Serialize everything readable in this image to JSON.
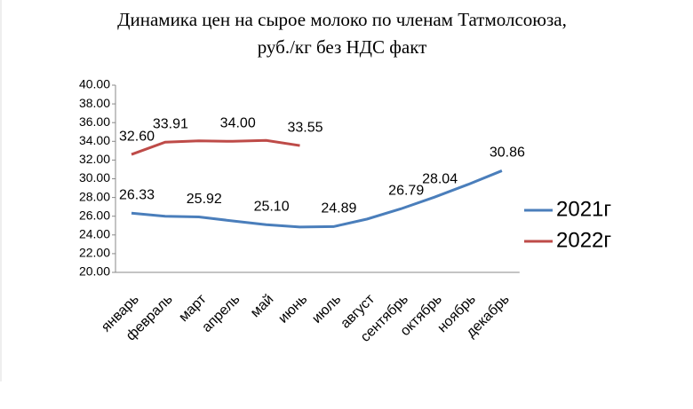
{
  "chart_data": {
    "type": "line",
    "title": [
      "Динамика цен на сырое молоко по членам Татмолсоюза,",
      "руб./кг без НДС факт"
    ],
    "categories": [
      "январь",
      "февраль",
      "март",
      "апрель",
      "май",
      "июнь",
      "июль",
      "август",
      "сентябрь",
      "октябрь",
      "ноябрь",
      "декабрь"
    ],
    "series": [
      {
        "name": "2021г",
        "color": "#4a7ebb",
        "values": [
          26.33,
          26.0,
          25.92,
          25.5,
          25.1,
          24.85,
          24.89,
          25.7,
          26.79,
          28.04,
          29.4,
          30.86
        ],
        "value_labels": [
          "26.33",
          null,
          "25.92",
          null,
          "25.10",
          null,
          "24.89",
          null,
          "26.79",
          "28.04",
          null,
          "30.86"
        ]
      },
      {
        "name": "2022г",
        "color": "#be4b48",
        "values": [
          32.6,
          33.91,
          34.05,
          34.0,
          34.1,
          33.55,
          null,
          null,
          null,
          null,
          null,
          null
        ],
        "value_labels": [
          "32.60",
          "33.91",
          null,
          "34.00",
          null,
          "33.55",
          null,
          null,
          null,
          null,
          null,
          null
        ]
      }
    ],
    "ylim": [
      20,
      40
    ],
    "yticks": [
      {
        "value": 20,
        "label": "20.00"
      },
      {
        "value": 22,
        "label": "22.00"
      },
      {
        "value": 24,
        "label": "24.00"
      },
      {
        "value": 26,
        "label": "26.00"
      },
      {
        "value": 28,
        "label": "28.00"
      },
      {
        "value": 30,
        "label": "30.00"
      },
      {
        "value": 32,
        "label": "32.00"
      },
      {
        "value": 34,
        "label": "34.00"
      },
      {
        "value": 36,
        "label": "36.00"
      },
      {
        "value": 38,
        "label": "38.00"
      },
      {
        "value": 40,
        "label": "40.00"
      }
    ],
    "legend": "right"
  }
}
